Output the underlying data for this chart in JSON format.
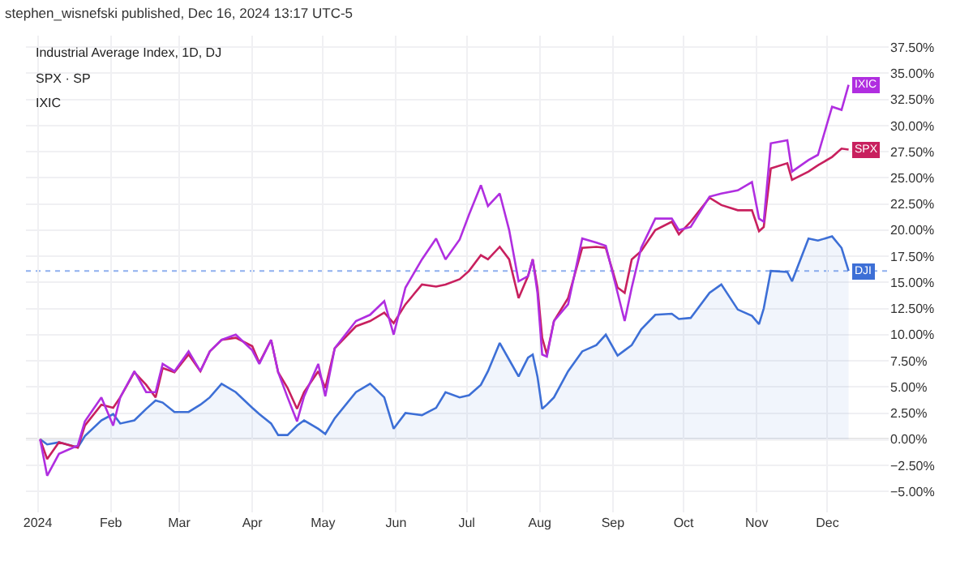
{
  "chart_data": {
    "type": "line",
    "title": "stephen_wisnefski published, Dec 16, 2024 13:17 UTC-5",
    "annotations": [
      "Industrial Average Index, 1D, DJ",
      "SPX · SP",
      "IXIC"
    ],
    "x": [
      "2024-01-02",
      "2024-01-05",
      "2024-01-10",
      "2024-01-18",
      "2024-01-21",
      "2024-01-28",
      "2024-02-02",
      "2024-02-05",
      "2024-02-11",
      "2024-02-16",
      "2024-02-20",
      "2024-02-23",
      "2024-02-28",
      "2024-03-05",
      "2024-03-10",
      "2024-03-14",
      "2024-03-19",
      "2024-03-25",
      "2024-04-01",
      "2024-04-04",
      "2024-04-09",
      "2024-04-12",
      "2024-04-16",
      "2024-04-20",
      "2024-04-23",
      "2024-04-29",
      "2024-05-02",
      "2024-05-06",
      "2024-05-15",
      "2024-05-21",
      "2024-05-27",
      "2024-05-31",
      "2024-06-05",
      "2024-06-12",
      "2024-06-18",
      "2024-06-22",
      "2024-06-28",
      "2024-07-02",
      "2024-07-07",
      "2024-07-10",
      "2024-07-15",
      "2024-07-19",
      "2024-07-23",
      "2024-07-27",
      "2024-07-29",
      "2024-07-31",
      "2024-08-02",
      "2024-08-04",
      "2024-08-07",
      "2024-08-13",
      "2024-08-19",
      "2024-08-25",
      "2024-08-29",
      "2024-09-03",
      "2024-09-06",
      "2024-09-09",
      "2024-09-13",
      "2024-09-19",
      "2024-09-26",
      "2024-09-29",
      "2024-10-04",
      "2024-10-12",
      "2024-10-17",
      "2024-10-24",
      "2024-10-30",
      "2024-11-02",
      "2024-11-04",
      "2024-11-07",
      "2024-11-14",
      "2024-11-16",
      "2024-11-23",
      "2024-11-27",
      "2024-12-03",
      "2024-12-07",
      "2024-12-10"
    ],
    "series": [
      {
        "name": "DJI",
        "type": "area",
        "color": "#3d6fd6",
        "values": [
          0,
          -0.5,
          -0.3,
          -0.8,
          0.3,
          1.8,
          2.4,
          1.5,
          1.8,
          2.9,
          3.7,
          3.5,
          2.6,
          2.6,
          3.3,
          4.0,
          5.3,
          4.5,
          3.0,
          2.4,
          1.5,
          0.4,
          0.4,
          1.3,
          1.8,
          1.0,
          0.5,
          2.0,
          4.5,
          5.3,
          4.0,
          1.0,
          2.5,
          2.3,
          3.0,
          4.5,
          4.0,
          4.2,
          5.2,
          6.5,
          9.2,
          7.6,
          6.0,
          7.8,
          8.1,
          6.0,
          2.9,
          3.3,
          4.0,
          6.5,
          8.4,
          9.0,
          10.0,
          8.0,
          8.5,
          9.0,
          10.5,
          11.9,
          12.0,
          11.5,
          11.6,
          14.0,
          14.8,
          12.4,
          11.8,
          11.0,
          12.5,
          16.1,
          16.0,
          15.1,
          19.2,
          19.0,
          19.4,
          18.3,
          16.1
        ]
      },
      {
        "name": "SPX",
        "color": "#c8205e",
        "values": [
          0,
          -1.9,
          -0.3,
          -0.8,
          1.3,
          3.3,
          3.0,
          4.0,
          6.4,
          5.2,
          4.0,
          6.8,
          6.4,
          8.1,
          6.5,
          8.4,
          9.5,
          9.7,
          8.9,
          7.3,
          9.5,
          6.4,
          4.9,
          2.9,
          4.5,
          6.5,
          4.9,
          8.7,
          10.8,
          11.3,
          12.1,
          11.1,
          12.9,
          14.8,
          14.6,
          14.8,
          15.3,
          16.1,
          17.6,
          17.2,
          18.4,
          17.2,
          13.5,
          15.6,
          17.2,
          14.5,
          9.7,
          8.1,
          11.3,
          13.5,
          18.3,
          18.4,
          18.3,
          14.5,
          14.0,
          17.2,
          18.0,
          20.0,
          20.8,
          19.6,
          20.8,
          23.1,
          22.4,
          21.9,
          21.9,
          19.9,
          20.3,
          25.9,
          26.4,
          24.8,
          25.6,
          26.2,
          27.0,
          27.8,
          27.7
        ]
      },
      {
        "name": "IXIC",
        "color": "#b02ee0",
        "values": [
          0,
          -3.5,
          -1.4,
          -0.6,
          1.7,
          4.0,
          1.3,
          4.0,
          6.5,
          4.5,
          4.5,
          7.2,
          6.5,
          8.4,
          6.5,
          8.4,
          9.5,
          10.0,
          8.5,
          7.2,
          9.5,
          6.4,
          4.0,
          1.7,
          4.1,
          7.2,
          4.1,
          8.7,
          11.3,
          11.9,
          13.2,
          10.0,
          14.5,
          17.2,
          19.2,
          17.2,
          19.1,
          21.5,
          24.3,
          22.3,
          23.5,
          20.0,
          15.1,
          15.6,
          17.2,
          14.0,
          8.1,
          7.9,
          11.3,
          12.9,
          19.2,
          18.8,
          18.5,
          14.0,
          11.3,
          14.5,
          18.3,
          21.1,
          21.1,
          20.0,
          20.3,
          23.2,
          23.5,
          23.8,
          24.6,
          21.1,
          20.8,
          28.3,
          28.6,
          25.6,
          26.7,
          27.2,
          31.8,
          31.5,
          33.9
        ]
      }
    ],
    "xlim": [
      "2023-12-27",
      "2024-12-27"
    ],
    "xticks": [
      {
        "value": "2024-01-01",
        "label": "2024"
      },
      {
        "value": "2024-02-01",
        "label": "Feb"
      },
      {
        "value": "2024-03-01",
        "label": "Mar"
      },
      {
        "value": "2024-04-01",
        "label": "Apr"
      },
      {
        "value": "2024-05-01",
        "label": "May"
      },
      {
        "value": "2024-06-01",
        "label": "Jun"
      },
      {
        "value": "2024-07-01",
        "label": "Jul"
      },
      {
        "value": "2024-08-01",
        "label": "Aug"
      },
      {
        "value": "2024-09-01",
        "label": "Sep"
      },
      {
        "value": "2024-10-01",
        "label": "Oct"
      },
      {
        "value": "2024-11-01",
        "label": "Nov"
      },
      {
        "value": "2024-12-01",
        "label": "Dec"
      }
    ],
    "ylim": [
      -7,
      38.6
    ],
    "yticks": [
      {
        "value": -5,
        "label": "−5.00%"
      },
      {
        "value": -2.5,
        "label": "−2.50%"
      },
      {
        "value": 0,
        "label": "0.00%"
      },
      {
        "value": 2.5,
        "label": "2.50%"
      },
      {
        "value": 5,
        "label": "5.00%"
      },
      {
        "value": 7.5,
        "label": "7.50%"
      },
      {
        "value": 10,
        "label": "10.00%"
      },
      {
        "value": 12.5,
        "label": "12.50%"
      },
      {
        "value": 15,
        "label": "15.00%"
      },
      {
        "value": 17.5,
        "label": "17.50%"
      },
      {
        "value": 20,
        "label": "20.00%"
      },
      {
        "value": 22.5,
        "label": "22.50%"
      },
      {
        "value": 25,
        "label": "25.00%"
      },
      {
        "value": 27.5,
        "label": "27.50%"
      },
      {
        "value": 30,
        "label": "30.00%"
      },
      {
        "value": 32.5,
        "label": "32.50%"
      },
      {
        "value": 35,
        "label": "35.00%"
      },
      {
        "value": 37.5,
        "label": "37.50%"
      }
    ],
    "ref_lines": [
      {
        "axis": "y",
        "value": 0,
        "color": "#d6d6d6",
        "line_style": "solid"
      },
      {
        "axis": "y",
        "value": 16.1,
        "color": "#8fb0ee",
        "line_style": "dotted"
      }
    ],
    "grid": true,
    "legend": false,
    "marker": "none",
    "line_style": "solid"
  }
}
